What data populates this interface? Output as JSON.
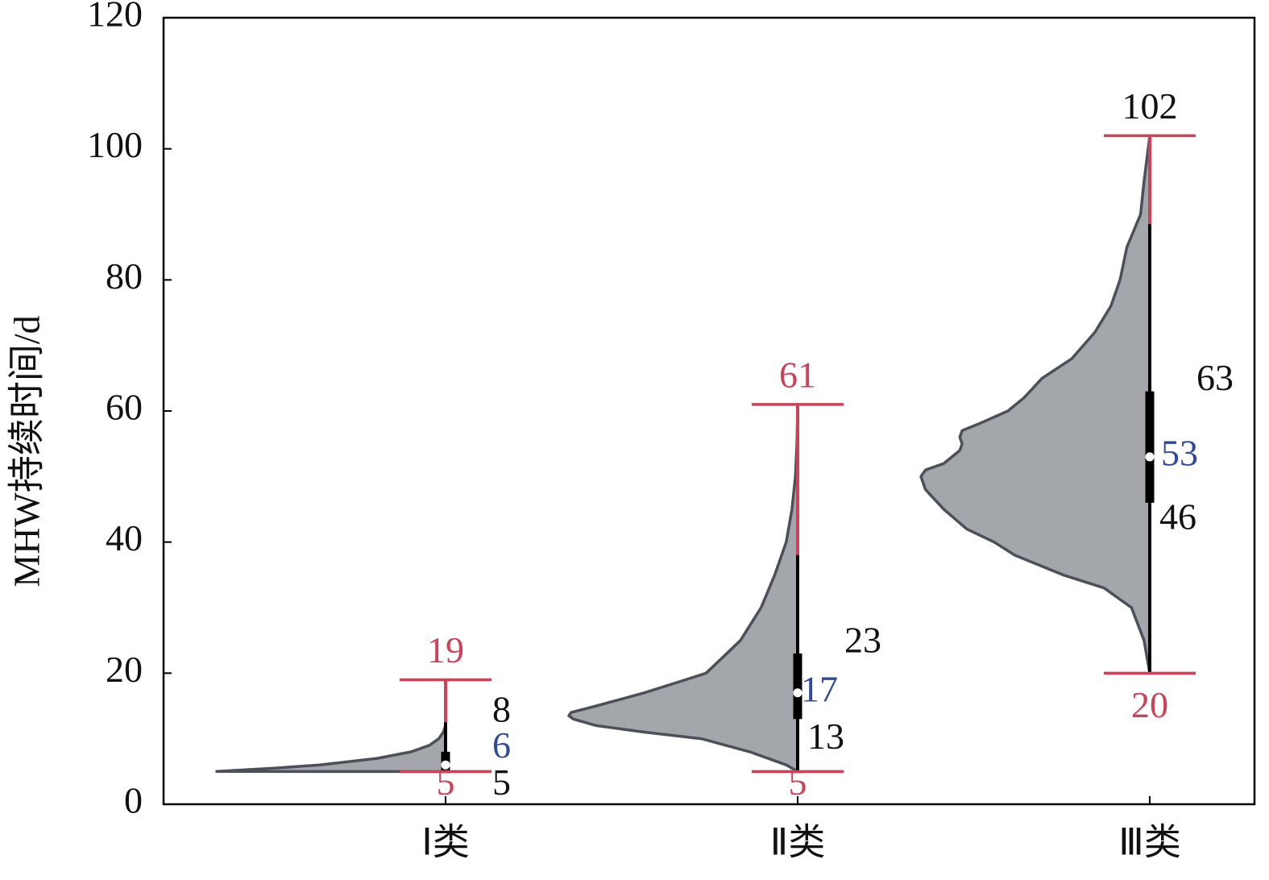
{
  "chart_data": {
    "type": "half-violin",
    "y_label": "MHW持续时间/d",
    "categories": [
      "Ⅰ类",
      "Ⅱ类",
      "Ⅲ类"
    ],
    "min": [
      5,
      5,
      20
    ],
    "q1": [
      5,
      13,
      46
    ],
    "median": [
      6,
      17,
      53
    ],
    "q3": [
      8,
      23,
      63
    ],
    "max": [
      19,
      61,
      102
    ],
    "density": [
      {
        "y": [
          5,
          5.5,
          6,
          7,
          8,
          9,
          10,
          11,
          12
        ],
        "values": [
          1.0,
          0.75,
          0.55,
          0.3,
          0.15,
          0.07,
          0.03,
          0.01,
          0
        ]
      },
      {
        "y": [
          5,
          6,
          8,
          10,
          11,
          12,
          13,
          13.5,
          14,
          15,
          17,
          19,
          20,
          25,
          30,
          35,
          40,
          45,
          50,
          55,
          61
        ],
        "values": [
          0,
          0.05,
          0.21,
          0.42,
          0.67,
          0.88,
          0.98,
          1.0,
          0.99,
          0.88,
          0.67,
          0.49,
          0.4,
          0.25,
          0.16,
          0.1,
          0.05,
          0.025,
          0.01,
          0.003,
          0
        ]
      },
      {
        "y": [
          20,
          25,
          30,
          33,
          35,
          38,
          40,
          42,
          45,
          48,
          50,
          51,
          52,
          54,
          55,
          56,
          57,
          58,
          60,
          62,
          65,
          68,
          72,
          76,
          80,
          85,
          90,
          95,
          100,
          102
        ],
        "values": [
          0,
          0.025,
          0.08,
          0.2,
          0.38,
          0.59,
          0.68,
          0.8,
          0.9,
          0.98,
          1.0,
          0.98,
          0.9,
          0.83,
          0.82,
          0.83,
          0.82,
          0.75,
          0.62,
          0.55,
          0.47,
          0.34,
          0.24,
          0.17,
          0.13,
          0.1,
          0.04,
          0.025,
          0.007,
          0
        ]
      }
    ],
    "fill": "#a3a7ab",
    "outline": "#4b5059",
    "whisker_color": "#cf4157",
    "box_color": "#000000",
    "median_color": "#2f4a9a",
    "label_color": "#111111",
    "ylim": [
      0,
      120
    ],
    "yticks": [
      0,
      20,
      40,
      60,
      80,
      100,
      120
    ]
  }
}
